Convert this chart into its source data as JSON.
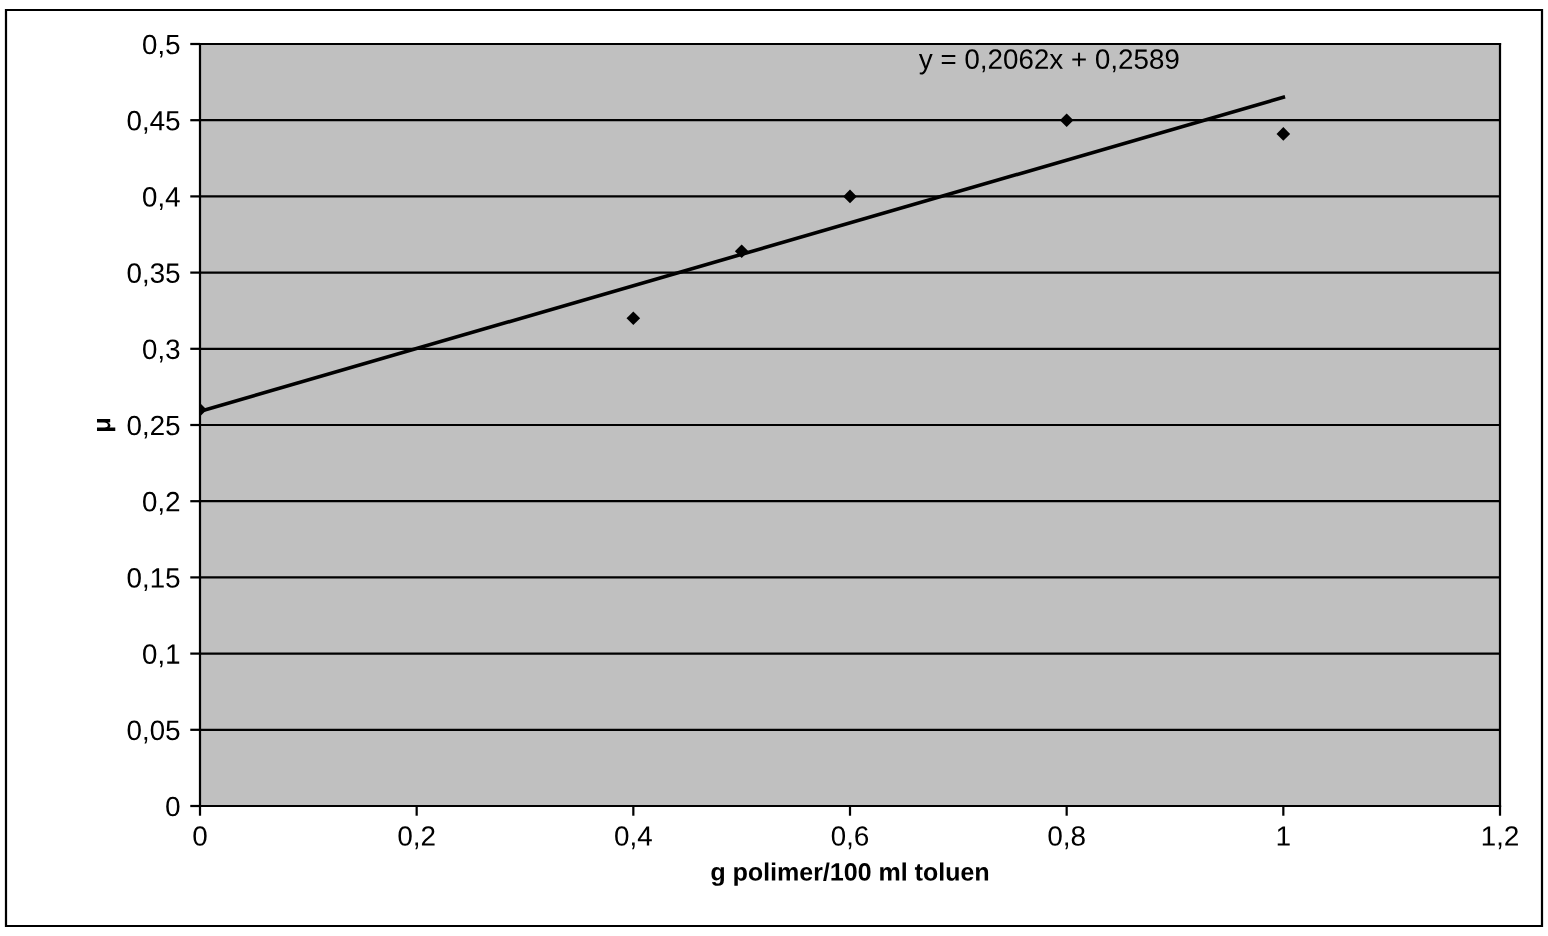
{
  "chart_data": {
    "type": "scatter",
    "xlabel": "g polimer/100 ml toluen",
    "ylabel": "μ",
    "series": [
      {
        "color": "#000000",
        "marker": "diamond",
        "x": [
          0,
          0.4,
          0.5,
          0.6,
          0.8,
          1.0
        ],
        "values": [
          0.26,
          0.32,
          0.364,
          0.4,
          0.45,
          0.441
        ]
      },
      {
        "type": "line",
        "color": "#000000",
        "marker": "none",
        "line_style": "solid",
        "x": [
          0,
          1.0
        ],
        "values": [
          0.259,
          0.465
        ]
      }
    ],
    "annotations": [
      "y = 0,2062x + 0,2589"
    ],
    "xlim": [
      0,
      1.2
    ],
    "ylim": [
      0,
      0.5
    ],
    "xticks": [
      0,
      {
        "value": 0.2,
        "label": "0,2"
      },
      {
        "value": 0.4,
        "label": "0,4"
      },
      {
        "value": 0.6,
        "label": "0,6"
      },
      {
        "value": 0.8,
        "label": "0,8"
      },
      1,
      {
        "value": 1.2,
        "label": "1,2"
      }
    ],
    "yticks": [
      0,
      {
        "value": 0.05,
        "label": "0,05"
      },
      {
        "value": 0.1,
        "label": "0,1"
      },
      {
        "value": 0.15,
        "label": "0,15"
      },
      {
        "value": 0.2,
        "label": "0,2"
      },
      {
        "value": 0.25,
        "label": "0,25"
      },
      {
        "value": 0.3,
        "label": "0,3"
      },
      {
        "value": 0.35,
        "label": "0,35"
      },
      {
        "value": 0.4,
        "label": "0,4"
      },
      {
        "value": 0.45,
        "label": "0,45"
      },
      {
        "value": 0.5,
        "label": "0,5"
      }
    ],
    "grid": "y",
    "legend": false
  }
}
